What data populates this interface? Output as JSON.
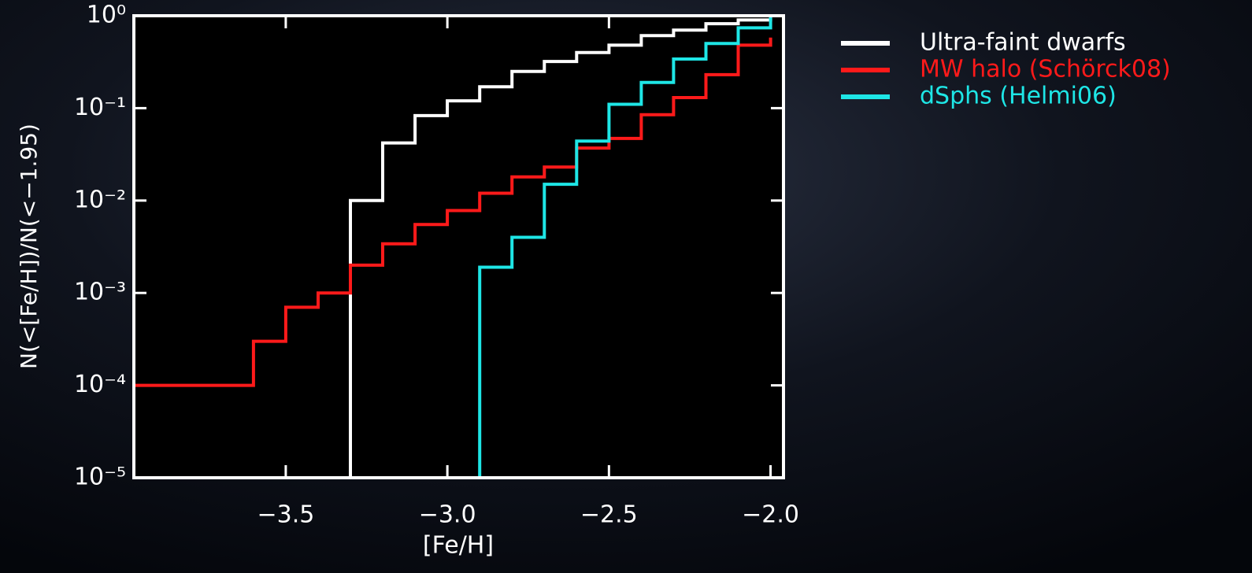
{
  "chart_data": {
    "type": "step",
    "xlabel": "[Fe/H]",
    "ylabel": "N(<[Fe/H])/N(<−1.95)",
    "xlim": [
      -3.97,
      -1.96
    ],
    "ylim": [
      1e-05,
      1
    ],
    "yscale": "log",
    "xticks": [
      {
        "value": -3.5,
        "label": "−3.5"
      },
      {
        "value": -3.0,
        "label": "−3.0"
      },
      {
        "value": -2.5,
        "label": "−2.5"
      },
      {
        "value": -2.0,
        "label": "−2.0"
      }
    ],
    "yticks": [
      {
        "value": 1,
        "label": "10⁰"
      },
      {
        "value": 0.1,
        "label": "10⁻¹"
      },
      {
        "value": 0.01,
        "label": "10⁻²"
      },
      {
        "value": 0.001,
        "label": "10⁻³"
      },
      {
        "value": 0.0001,
        "label": "10⁻⁴"
      },
      {
        "value": 1e-05,
        "label": "10⁻⁵"
      }
    ],
    "series": [
      {
        "name": "Ultra-faint dwarfs",
        "color": "#ffffff",
        "x": [
          -3.97,
          -3.3,
          -3.2,
          -3.1,
          -3.0,
          -2.9,
          -2.8,
          -2.7,
          -2.6,
          -2.5,
          -2.4,
          -2.3,
          -2.2,
          -2.1,
          -2.0
        ],
        "values": [
          1e-05,
          0.01,
          0.042,
          0.083,
          0.12,
          0.17,
          0.25,
          0.32,
          0.4,
          0.48,
          0.61,
          0.7,
          0.82,
          0.9,
          1
        ]
      },
      {
        "name": "MW halo (Schörck08)",
        "color": "#ff1a1a",
        "x": [
          -3.97,
          -3.6,
          -3.5,
          -3.4,
          -3.3,
          -3.2,
          -3.1,
          -3.0,
          -2.9,
          -2.8,
          -2.7,
          -2.6,
          -2.5,
          -2.4,
          -2.3,
          -2.2,
          -2.1,
          -2.0
        ],
        "values": [
          0.0001,
          0.0003,
          0.0007,
          0.001,
          0.002,
          0.0034,
          0.0055,
          0.0078,
          0.012,
          0.018,
          0.023,
          0.037,
          0.047,
          0.085,
          0.13,
          0.23,
          0.48,
          0.58
        ]
      },
      {
        "name": "dSphs (Helmi06)",
        "color": "#1ee6e6",
        "x": [
          -3.97,
          -2.9,
          -2.8,
          -2.7,
          -2.6,
          -2.5,
          -2.4,
          -2.3,
          -2.2,
          -2.1,
          -2.0
        ],
        "values": [
          1e-05,
          0.0019,
          0.004,
          0.015,
          0.044,
          0.11,
          0.19,
          0.34,
          0.5,
          0.74,
          1
        ]
      }
    ]
  }
}
